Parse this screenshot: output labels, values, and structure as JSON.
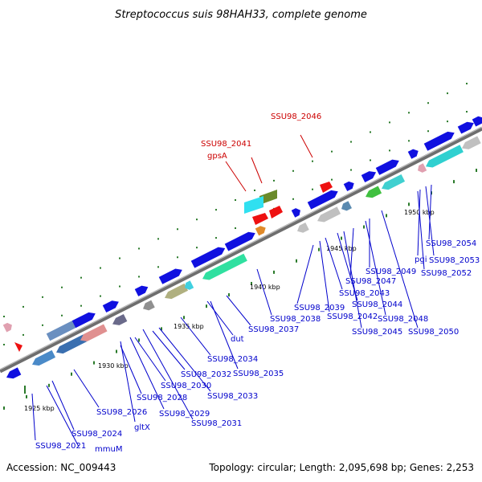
{
  "title": "Streptococcus suis 98HAH33, complete genome",
  "footer": {
    "accession": "Accession: NC_009443",
    "summary": "Topology: circular; Length: 2,095,698 bp; Genes: 2,253"
  },
  "colors": {
    "backbone": "#888888",
    "forward_label": "#0000cc",
    "highlight_label": "#cc0000",
    "tick": "#2a7a2a"
  },
  "kbp_labels": [
    "1925 kbp",
    "1930 kbp",
    "1935 kbp",
    "1940 kbp",
    "1945 kbp",
    "1950 kbp"
  ],
  "gene_labels": {
    "highlighted": [
      "SSU98_2046",
      "SSU98_2041",
      "gpsA"
    ],
    "lower": [
      "SSU98_2021",
      "mmuM",
      "SSU98_2024",
      "SSU98_2026",
      "gltX",
      "SSU98_2029",
      "SSU98_2031",
      "SSU98_2028",
      "SSU98_2030",
      "SSU98_2033",
      "SSU98_2032",
      "SSU98_2035",
      "SSU98_2034",
      "dut",
      "SSU98_2037",
      "SSU98_2038",
      "SSU98_2039",
      "SSU98_2042",
      "SSU98_2043",
      "SSU98_2044",
      "SSU98_2045",
      "SSU98_2047",
      "SSU98_2048",
      "SSU98_2049",
      "SSU98_2050",
      "SSU98_2052",
      "pgi",
      "SSU98_2053",
      "SSU98_2054"
    ]
  }
}
